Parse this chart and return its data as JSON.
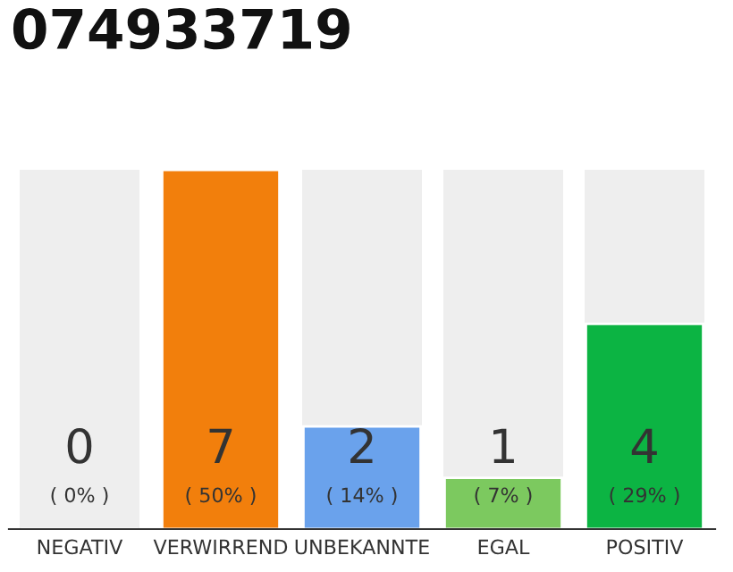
{
  "chart_data": {
    "type": "bar",
    "title": "074933719",
    "categories": [
      "NEGATIV",
      "VERWIRREND",
      "UNBEKANNTE",
      "EGAL",
      "POSITIV"
    ],
    "values": [
      0,
      7,
      2,
      1,
      4
    ],
    "colors": [
      null,
      "#f27f0c",
      "#6aa2ec",
      "#7cc95f",
      "#0cb443"
    ],
    "data_labels": true,
    "annotations": [
      "( 0% )",
      "( 50% )",
      "( 14% )",
      "( 7% )",
      "( 29% )"
    ]
  }
}
